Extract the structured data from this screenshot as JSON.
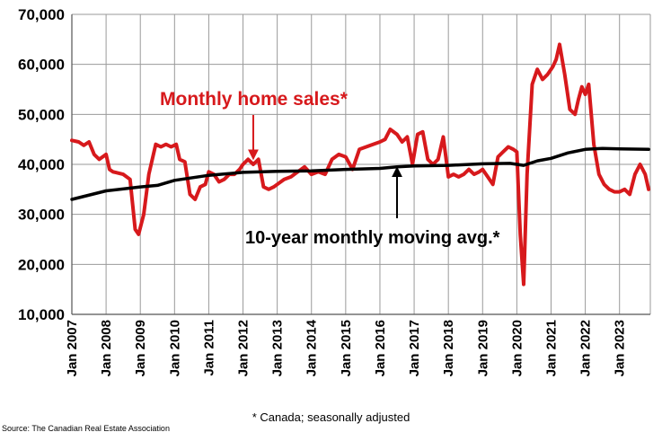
{
  "footnote": "* Canada; seasonally adjusted",
  "source": "Source: The Canadian Real Estate Association",
  "colors": {
    "sales": "#d7191c",
    "average": "#000000",
    "grid": "#9a9a9a"
  },
  "chart_data": {
    "type": "line",
    "ylim": [
      10000,
      70000
    ],
    "yticks": [
      "10,000",
      "20,000",
      "30,000",
      "40,000",
      "50,000",
      "60,000",
      "70,000"
    ],
    "ytick_values": [
      10000,
      20000,
      30000,
      40000,
      50000,
      60000,
      70000
    ],
    "xlim": [
      2007.0,
      2023.9
    ],
    "xticks": [
      "Jan 2007",
      "Jan 2008",
      "Jan 2009",
      "Jan 2010",
      "Jan 2011",
      "Jan 2012",
      "Jan 2013",
      "Jan 2014",
      "Jan 2015",
      "Jan 2016",
      "Jan 2017",
      "Jan 2018",
      "Jan 2019",
      "Jan 2020",
      "Jan 2021",
      "Jan 2022",
      "Jan 2023"
    ],
    "xtick_values": [
      2007,
      2008,
      2009,
      2010,
      2011,
      2012,
      2013,
      2014,
      2015,
      2016,
      2017,
      2018,
      2019,
      2020,
      2021,
      2022,
      2023
    ],
    "grid": true,
    "series": [
      {
        "name": "Monthly home sales*",
        "color": "#d7191c",
        "x": [
          2007.0,
          2007.2,
          2007.35,
          2007.5,
          2007.65,
          2007.8,
          2008.0,
          2008.1,
          2008.2,
          2008.5,
          2008.7,
          2008.85,
          2008.95,
          2009.1,
          2009.25,
          2009.45,
          2009.6,
          2009.75,
          2009.9,
          2010.05,
          2010.15,
          2010.3,
          2010.45,
          2010.6,
          2010.75,
          2010.9,
          2011.0,
          2011.15,
          2011.3,
          2011.45,
          2011.6,
          2011.75,
          2011.9,
          2012.0,
          2012.15,
          2012.3,
          2012.45,
          2012.6,
          2012.75,
          2012.9,
          2013.0,
          2013.2,
          2013.4,
          2013.6,
          2013.8,
          2014.0,
          2014.2,
          2014.4,
          2014.6,
          2014.8,
          2015.0,
          2015.2,
          2015.4,
          2015.6,
          2015.8,
          2016.0,
          2016.15,
          2016.3,
          2016.5,
          2016.65,
          2016.8,
          2016.95,
          2017.1,
          2017.25,
          2017.4,
          2017.55,
          2017.7,
          2017.85,
          2018.0,
          2018.15,
          2018.3,
          2018.45,
          2018.6,
          2018.75,
          2018.9,
          2019.0,
          2019.15,
          2019.3,
          2019.45,
          2019.6,
          2019.75,
          2019.9,
          2020.0,
          2020.1,
          2020.2,
          2020.3,
          2020.45,
          2020.6,
          2020.75,
          2020.9,
          2021.05,
          2021.15,
          2021.25,
          2021.4,
          2021.55,
          2021.7,
          2021.8,
          2021.9,
          2022.0,
          2022.1,
          2022.25,
          2022.4,
          2022.55,
          2022.7,
          2022.85,
          2023.0,
          2023.15,
          2023.3,
          2023.45,
          2023.6,
          2023.75,
          2023.85
        ],
        "values": [
          44800,
          44500,
          43800,
          44500,
          42000,
          41000,
          42000,
          39000,
          38500,
          38000,
          37000,
          27000,
          26000,
          30000,
          38000,
          44000,
          43500,
          44000,
          43500,
          44000,
          41000,
          40500,
          34000,
          33000,
          35500,
          36000,
          38500,
          38000,
          36500,
          37000,
          38000,
          38000,
          39000,
          40000,
          41000,
          40000,
          41000,
          35500,
          35000,
          35500,
          36000,
          37000,
          37500,
          38500,
          39500,
          38000,
          38500,
          38000,
          41000,
          42000,
          41500,
          39000,
          43000,
          43500,
          44000,
          44500,
          45000,
          47000,
          46000,
          44500,
          45500,
          40000,
          46000,
          46500,
          41000,
          40000,
          41000,
          45500,
          37500,
          38000,
          37500,
          38000,
          39000,
          38000,
          38500,
          39000,
          37500,
          36000,
          41500,
          42500,
          43500,
          43000,
          42500,
          26000,
          16000,
          38000,
          56000,
          59000,
          57000,
          58000,
          59500,
          61000,
          64000,
          58000,
          51000,
          50000,
          53000,
          55500,
          54000,
          56000,
          44000,
          38000,
          36000,
          35000,
          34500,
          34500,
          35000,
          34000,
          38000,
          40000,
          38000,
          35000
        ]
      },
      {
        "name": "10-year monthly moving avg.*",
        "color": "#000000",
        "x": [
          2007.0,
          2008.0,
          2009.0,
          2009.5,
          2010.0,
          2011.0,
          2012.0,
          2013.0,
          2014.0,
          2015.0,
          2016.0,
          2016.5,
          2017.0,
          2018.0,
          2019.0,
          2019.8,
          2020.2,
          2020.6,
          2021.0,
          2021.5,
          2022.0,
          2022.5,
          2023.0,
          2023.85
        ],
        "values": [
          33000,
          34700,
          35500,
          35800,
          36800,
          37800,
          38400,
          38600,
          38700,
          39000,
          39200,
          39500,
          39700,
          39800,
          40100,
          40200,
          39800,
          40700,
          41200,
          42300,
          43000,
          43200,
          43100,
          43000
        ]
      }
    ],
    "annotations": [
      {
        "text": "Monthly home sales*",
        "color": "#d7191c",
        "arrow_target": [
          2012.3,
          41200
        ]
      },
      {
        "text": "10-year monthly moving avg.*",
        "color": "#000000",
        "arrow_target": [
          2016.5,
          39600
        ]
      }
    ]
  }
}
